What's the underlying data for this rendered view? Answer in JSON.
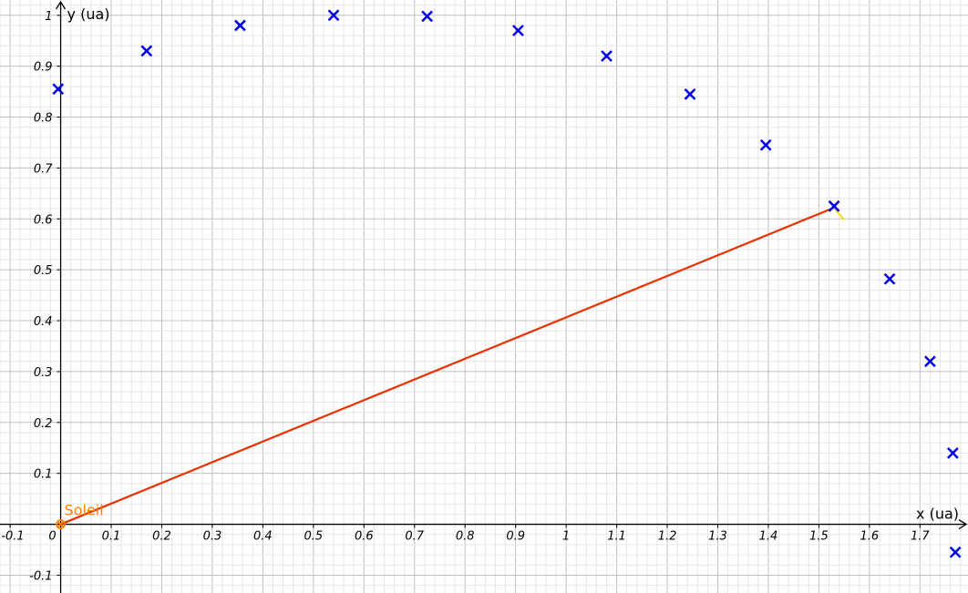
{
  "chart_data": {
    "type": "scatter",
    "xlabel": "x (ua)",
    "ylabel": "y (ua)",
    "xlim": [
      -0.12,
      1.795
    ],
    "ylim": [
      -0.135,
      1.03
    ],
    "grid": true,
    "x_ticks": [
      -0.1,
      0,
      0.1,
      0.2,
      0.3,
      0.4,
      0.5,
      0.6,
      0.7,
      0.8,
      0.9,
      1,
      1.1,
      1.2,
      1.3,
      1.4,
      1.5,
      1.6,
      1.7
    ],
    "y_ticks": [
      -0.1,
      0.1,
      0.2,
      0.3,
      0.4,
      0.5,
      0.6,
      0.7,
      0.8,
      0.9,
      1
    ],
    "series": [
      {
        "marker": "x",
        "color": "#0000e6",
        "points": [
          [
            -0.005,
            0.855
          ],
          [
            0.17,
            0.93
          ],
          [
            0.355,
            0.98
          ],
          [
            0.54,
            1.0
          ],
          [
            0.725,
            0.998
          ],
          [
            0.905,
            0.97
          ],
          [
            1.08,
            0.92
          ],
          [
            1.245,
            0.845
          ],
          [
            1.395,
            0.745
          ],
          [
            1.53,
            0.625
          ],
          [
            1.64,
            0.482
          ],
          [
            1.72,
            0.32
          ],
          [
            1.765,
            0.14
          ],
          [
            1.77,
            -0.055
          ]
        ]
      }
    ],
    "sun": {
      "label": "Soleil",
      "x": 0,
      "y": 0,
      "color": "#ff7f00"
    },
    "vector": {
      "from": [
        0,
        0
      ],
      "to": [
        1.53,
        0.622
      ],
      "color": "#e63200"
    },
    "highlight_segment": {
      "from": [
        1.53,
        0.622
      ],
      "to": [
        1.55,
        0.598
      ],
      "color": "#f0e040"
    }
  }
}
